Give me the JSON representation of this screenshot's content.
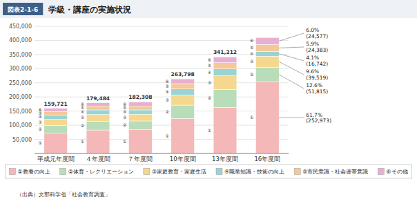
{
  "chart_data": {
    "type": "bar",
    "stacked": true,
    "title": "学級・講座の実施状況",
    "figure_label": "図表2-1-6",
    "source": "（出典）文部科学省「社会教育調査」",
    "categories": [
      "平成元年度間",
      "４年度間",
      "７年度間",
      "10年度間",
      "13年度間",
      "16年度間"
    ],
    "series": [
      {
        "name": "①教養の向上",
        "short_name": "①",
        "color": "#f5b8b8",
        "values": [
          72000,
          83000,
          84000,
          124000,
          163000,
          252973
        ],
        "annotation": "61.7%\n(252,973)"
      },
      {
        "name": "②体育・レクリエーション",
        "short_name": "②",
        "color": "#b8ddb8",
        "values": [
          27000,
          31000,
          31000,
          47000,
          63000,
          51815
        ],
        "annotation": "12.6%\n(51,815)"
      },
      {
        "name": "③家庭教育・家庭生活",
        "short_name": "③",
        "color": "#f5d890",
        "values": [
          22000,
          24000,
          24000,
          36000,
          49000,
          39519
        ],
        "annotation": "9.6%\n(39,519)"
      },
      {
        "name": "④職業知識・技術の向上",
        "short_name": "④",
        "color": "#98d4d4",
        "values": [
          15000,
          16000,
          15000,
          21000,
          24000,
          16742
        ],
        "annotation": "4.1%\n(16,742)"
      },
      {
        "name": "⑤市民意識・社会連帯意識",
        "short_name": "⑤",
        "color": "#f5c89a",
        "values": [
          12000,
          13000,
          13000,
          19000,
          22000,
          24383
        ],
        "annotation": "5.9%\n(24,383)"
      },
      {
        "name": "⑥その他",
        "short_name": "⑥",
        "color": "#e8b0d0",
        "values": [
          11721,
          12484,
          15308,
          16798,
          20212,
          24577
        ],
        "annotation": "6.0%\n(24,577)"
      }
    ],
    "totals": [
      159721,
      179484,
      182308,
      263798,
      341212,
      null
    ],
    "total_labels": [
      "159,721",
      "179,484",
      "182,308",
      "263,798",
      "341,212",
      null
    ],
    "ylim": [
      0,
      450000
    ],
    "yticks": [
      {
        "value": 0,
        "label": null
      },
      {
        "value": 50000,
        "label": "50,000"
      },
      {
        "value": 100000,
        "label": "100,000"
      },
      {
        "value": 150000,
        "label": "150,000"
      },
      {
        "value": 200000,
        "label": "200,000"
      },
      {
        "value": 250000,
        "label": "250,000"
      },
      {
        "value": 300000,
        "label": "300,000"
      },
      {
        "value": 350000,
        "label": "350,000"
      },
      {
        "value": 400000,
        "label": "400,000"
      },
      {
        "value": 450000,
        "label": "450,000"
      }
    ],
    "grid": true,
    "legend": "bottom"
  }
}
